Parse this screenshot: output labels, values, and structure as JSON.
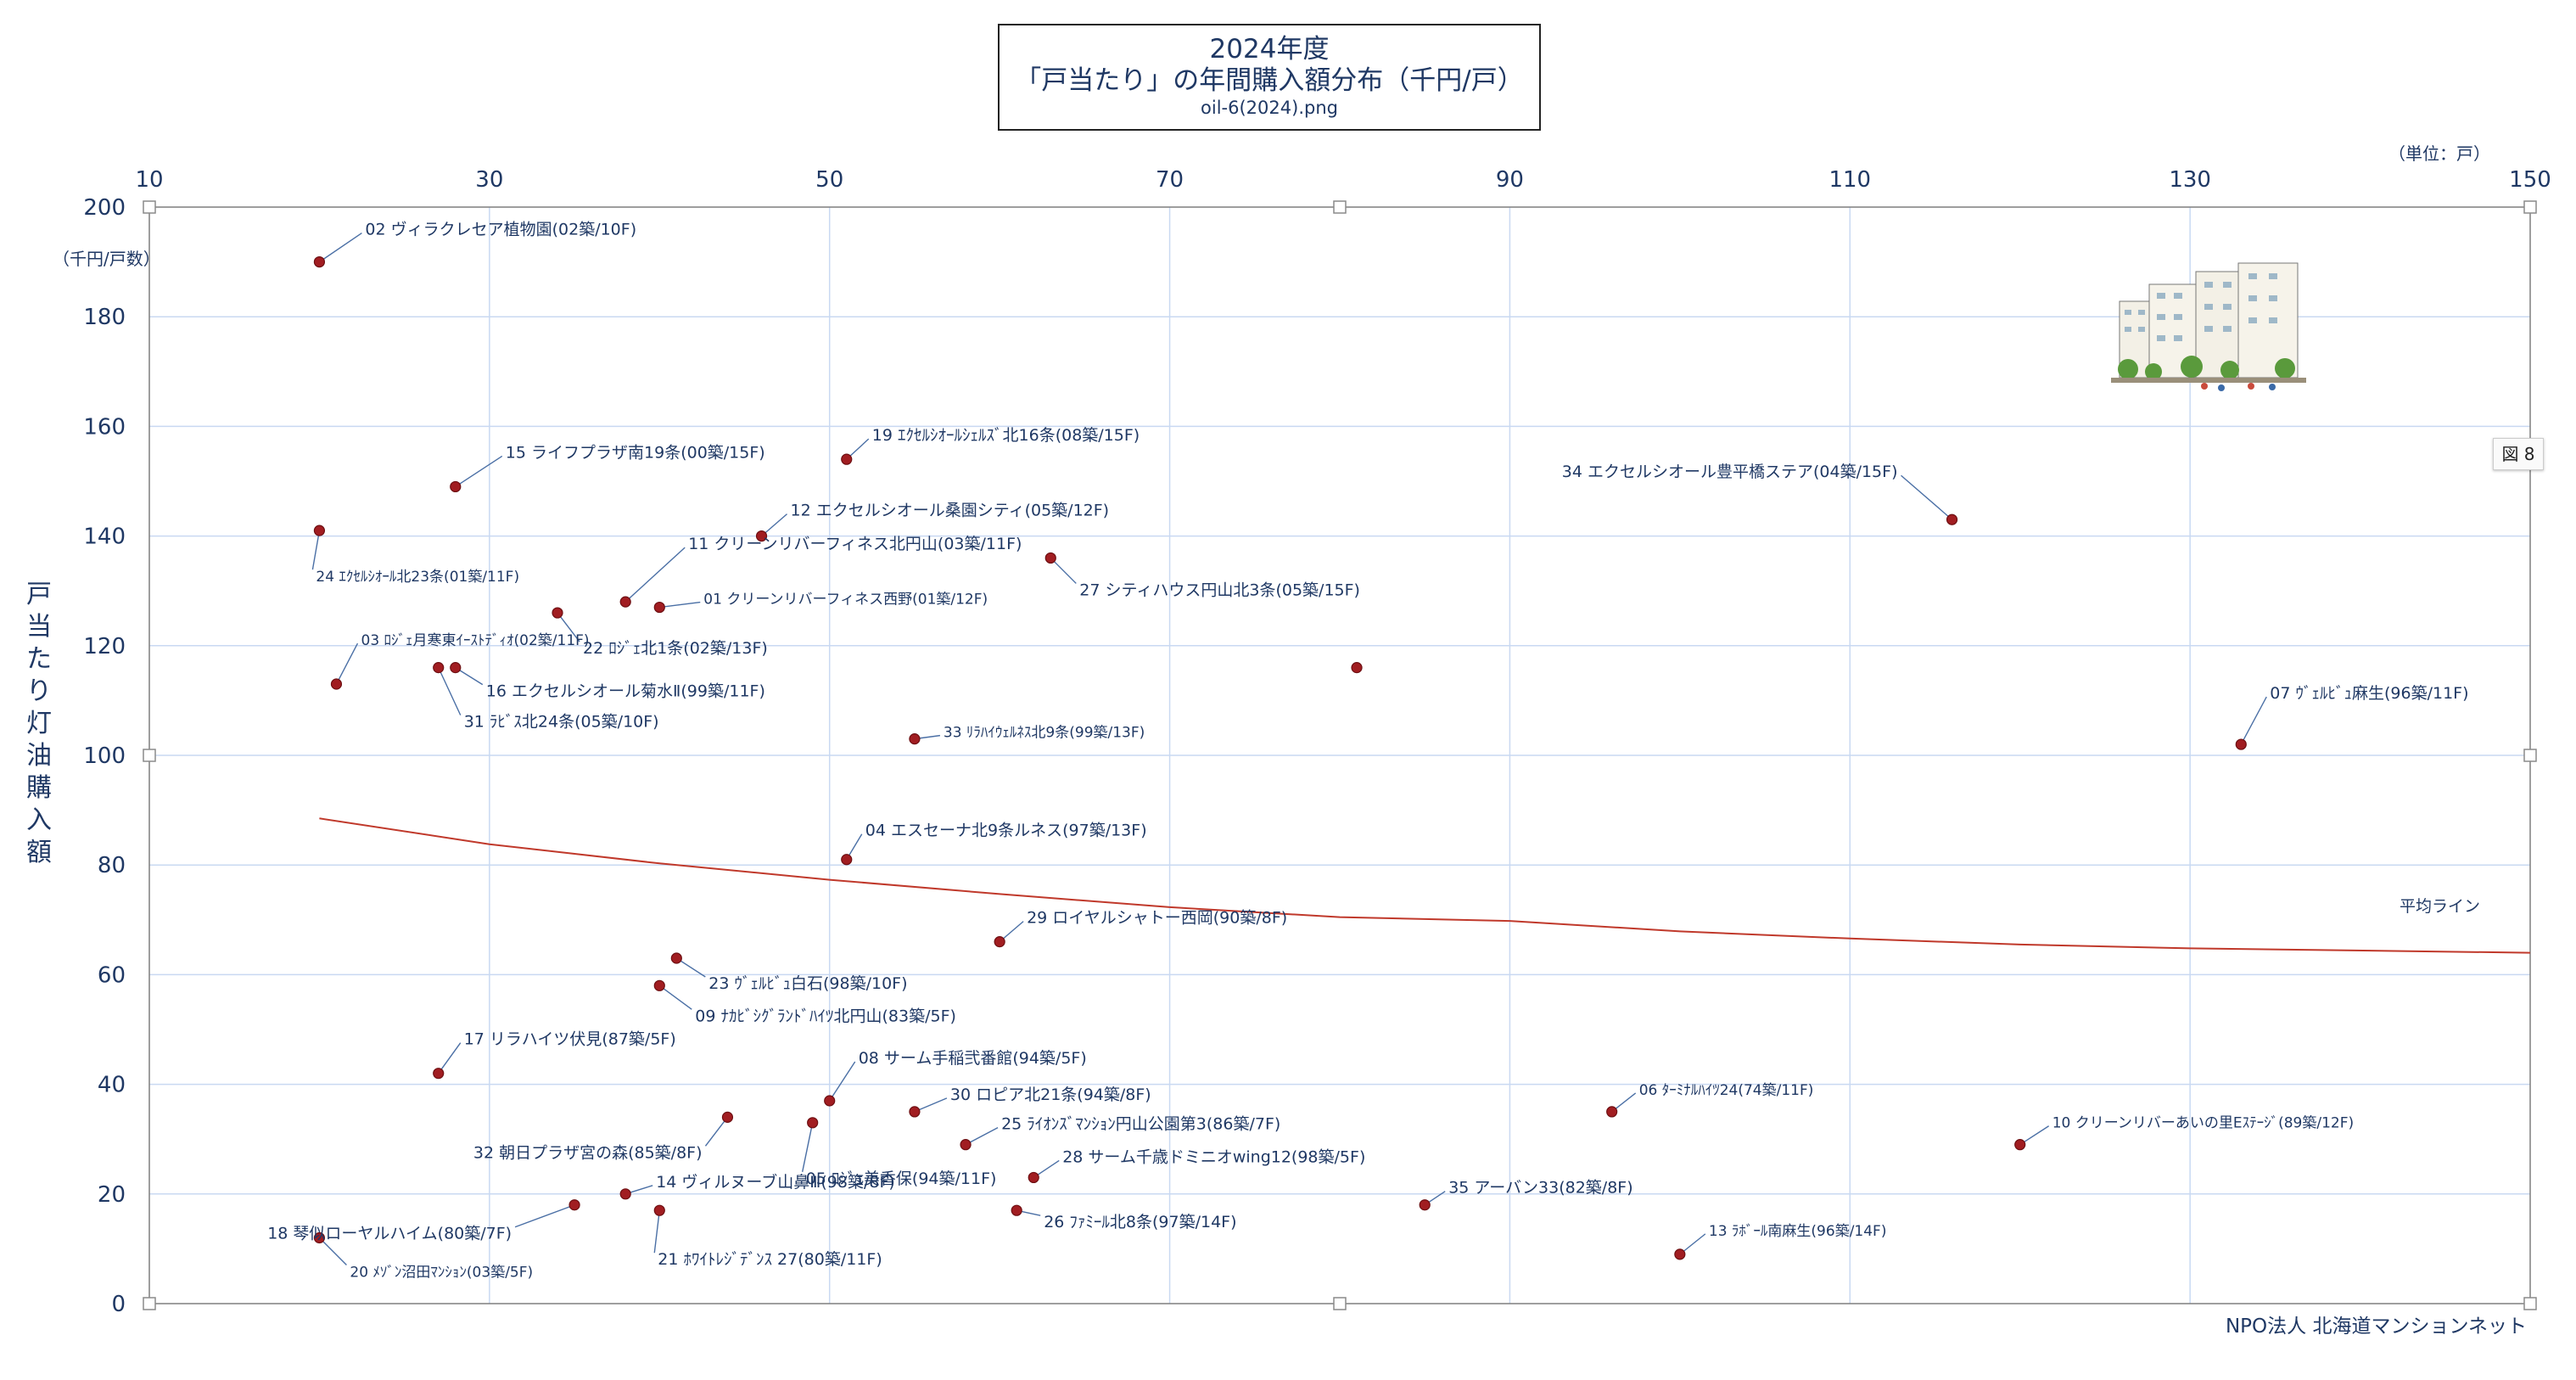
{
  "title": {
    "line1": "2024年度",
    "line2": "「戸当たり」の年間購入額分布（千円/戸）",
    "line3": "oil-6(2024).png"
  },
  "figure_tag": "図 8",
  "footer": "NPO法人 北海道マンションネット",
  "colors": {
    "axis_text": "#1f3864",
    "grid": "#c9d9f2",
    "point": "#a11d21",
    "trend": "#c0392b",
    "leader": "#4a6fa5"
  },
  "icons": [
    "apartment-illustration-icon"
  ],
  "chart_data": {
    "type": "scatter",
    "x_unit_label": "（単位：戸）",
    "y_unit_label": "（千円/戸数）",
    "ylabel": "戸当たり灯油購入額",
    "xlim": [
      10,
      150
    ],
    "ylim": [
      0,
      200
    ],
    "x_ticks": [
      10,
      30,
      50,
      70,
      90,
      110,
      130,
      150
    ],
    "x_tick_position": "top",
    "y_ticks": [
      0,
      20,
      40,
      60,
      80,
      100,
      120,
      140,
      160,
      180,
      200
    ],
    "grid": true,
    "trend_label": "平均ライン",
    "trend": [
      [
        20,
        88.5
      ],
      [
        30,
        83.8
      ],
      [
        40,
        80.3
      ],
      [
        50,
        77.3
      ],
      [
        60,
        74.7
      ],
      [
        70,
        72.3
      ],
      [
        80,
        70.5
      ],
      [
        90,
        69.8
      ],
      [
        100,
        67.9
      ],
      [
        110,
        66.6
      ],
      [
        120,
        65.5
      ],
      [
        130,
        64.8
      ],
      [
        150,
        64.0
      ]
    ],
    "points": [
      {
        "x": 20,
        "y": 190,
        "label": "02 ヴィラクレセア植物園(02築/10F)"
      },
      {
        "x": 21,
        "y": 113,
        "label": "03 ﾛｼﾞｪ月寒東ｲｰｽﾄﾃﾞｨｵ(02築/11F)"
      },
      {
        "x": 20,
        "y": 141,
        "label": "24 ｴｸｾﾙｼｵｰﾙ北23条(01築/11F)"
      },
      {
        "x": 28,
        "y": 149,
        "label": "15 ライフプラザ南19条(00築/15F)"
      },
      {
        "x": 51,
        "y": 154,
        "label": "19 ｴｸｾﾙｼｵｰﾙｼｪﾙｽﾞ北16条(08築/15F)"
      },
      {
        "x": 46,
        "y": 140,
        "label": "12 エクセルシオール桑園シティ(05築/12F)"
      },
      {
        "x": 38,
        "y": 128,
        "label": "11 クリーンリバーフィネス北円山(03築/11F)"
      },
      {
        "x": 40,
        "y": 127,
        "label": "01 クリーンリバーフィネス西野(01築/12F)"
      },
      {
        "x": 34,
        "y": 126,
        "label": "22 ﾛｼﾞｪ北1条(02築/13F)"
      },
      {
        "x": 63,
        "y": 136,
        "label": "27 シティハウス円山北3条(05築/15F)"
      },
      {
        "x": 116,
        "y": 143,
        "label": "34 エクセルシオール豊平橋ステア(04築/15F)"
      },
      {
        "x": 28,
        "y": 116,
        "label": "16 エクセルシオール菊水Ⅱ(99築/11F)"
      },
      {
        "x": 27,
        "y": 116,
        "label": "31 ﾗﾋﾞｽ北24条(05築/10F)"
      },
      {
        "x": 81,
        "y": 116,
        "label": ""
      },
      {
        "x": 55,
        "y": 103,
        "label": "33 ﾘﾗﾊｲｳｪﾙﾈｽ北9条(99築/13F)"
      },
      {
        "x": 133,
        "y": 102,
        "label": "07 ｳﾞｪﾙﾋﾞｭ麻生(96築/11F)"
      },
      {
        "x": 51,
        "y": 81,
        "label": "04 エスセーナ北9条ルネス(97築/13F)"
      },
      {
        "x": 60,
        "y": 66,
        "label": "29 ロイヤルシャトー西岡(90築/8F)"
      },
      {
        "x": 41,
        "y": 63,
        "label": "23 ｳﾞｪﾙﾋﾞｭ白石(98築/10F)"
      },
      {
        "x": 40,
        "y": 58,
        "label": "09 ﾅｶﾋﾞｼｸﾞﾗﾝﾄﾞﾊｲﾂ北円山(83築/5F)"
      },
      {
        "x": 27,
        "y": 42,
        "label": "17 リラハイツ伏見(87築/5F)"
      },
      {
        "x": 50,
        "y": 37,
        "label": "08 サーム手稲弐番館(94築/5F)"
      },
      {
        "x": 55,
        "y": 35,
        "label": "30 ロピア北21条(94築/8F)"
      },
      {
        "x": 44,
        "y": 34,
        "label": "32 朝日プラザ宮の森(85築/8F)"
      },
      {
        "x": 49,
        "y": 33,
        "label": "05 ﾛｼﾞｪ美香保(94築/11F)"
      },
      {
        "x": 58,
        "y": 29,
        "label": "25 ﾗｲｵﾝｽﾞﾏﾝｼｮﾝ円山公園第3(86築/7F)"
      },
      {
        "x": 96,
        "y": 35,
        "label": "06 ﾀｰﾐﾅﾙﾊｲﾂ24(74築/11F)"
      },
      {
        "x": 120,
        "y": 29,
        "label": "10 クリーンリバーあいの里Eｽﾃｰｼﾞ(89築/12F)"
      },
      {
        "x": 62,
        "y": 23,
        "label": "28 サーム千歳ドミニオwing12(98築/5F)"
      },
      {
        "x": 38,
        "y": 20,
        "label": "14 ヴィルヌーブ山鼻Ⅲ(98築/8F)"
      },
      {
        "x": 35,
        "y": 18,
        "label": "18 琴似ローヤルハイム(80築/7F)"
      },
      {
        "x": 85,
        "y": 18,
        "label": "35 アーバン33(82築/8F)"
      },
      {
        "x": 40,
        "y": 17,
        "label": "21 ﾎﾜｲﾄﾚｼﾞﾃﾞﾝｽ 27(80築/11F)"
      },
      {
        "x": 61,
        "y": 17,
        "label": "26 ﾌｧﾐｰﾙ北8条(97築/14F)"
      },
      {
        "x": 20,
        "y": 12,
        "label": "20 ﾒｿﾞﾝ沼田ﾏﾝｼｮﾝ(03築/5F)"
      },
      {
        "x": 100,
        "y": 9,
        "label": "13 ﾗﾎﾞｰﾙ南麻生(96築/14F)"
      }
    ]
  }
}
